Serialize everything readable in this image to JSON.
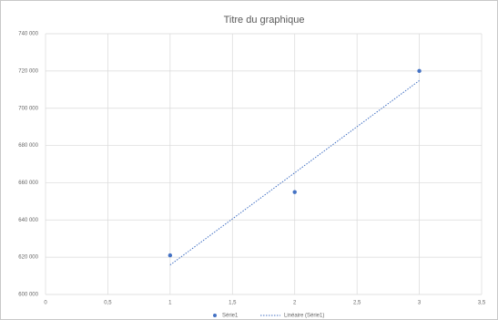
{
  "chart_data": {
    "type": "scatter",
    "title": "Titre du graphique",
    "series": [
      {
        "name": "Série1",
        "color": "#4472c4",
        "x": [
          1,
          2,
          3
        ],
        "values": [
          621000,
          655000,
          720000
        ]
      },
      {
        "name": "Linéaire (Série1)",
        "color": "#4472c4",
        "line": "dotted",
        "x": [
          1,
          3
        ],
        "values": [
          615833,
          714833
        ]
      }
    ],
    "xlim": [
      0,
      3.5
    ],
    "xticks": [
      0,
      {
        "value": 0.5,
        "label": "0,5"
      },
      1,
      {
        "value": 1.5,
        "label": "1,5"
      },
      2,
      {
        "value": 2.5,
        "label": "2,5"
      },
      3,
      {
        "value": 3.5,
        "label": "3,5"
      }
    ],
    "ylim": [
      600000,
      740000
    ],
    "yticks": [
      {
        "value": 600000,
        "label": "600 000"
      },
      {
        "value": 620000,
        "label": "620 000"
      },
      {
        "value": 640000,
        "label": "640 000"
      },
      {
        "value": 660000,
        "label": "660 000"
      },
      {
        "value": 680000,
        "label": "680 000"
      },
      {
        "value": 700000,
        "label": "700 000"
      },
      {
        "value": 720000,
        "label": "720 000"
      },
      {
        "value": 740000,
        "label": "740 000"
      }
    ],
    "grid": true,
    "legend": "bottom"
  }
}
